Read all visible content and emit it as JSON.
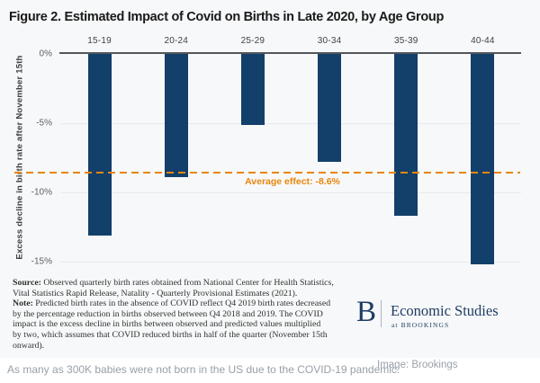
{
  "figure": {
    "title": "Figure 2. Estimated Impact of Covid on Births in Late 2020, by Age Group"
  },
  "chart_data": {
    "type": "bar",
    "title": "Figure 2. Estimated Impact of Covid on Births in Late 2020, by Age Group",
    "categories": [
      "15-19",
      "20-24",
      "25-29",
      "30-34",
      "35-39",
      "40-44"
    ],
    "values": [
      -13.1,
      -8.9,
      -5.1,
      -7.8,
      -11.7,
      -15.2
    ],
    "xlabel": "",
    "ylabel": "Excess decline in birth rate after November 15th",
    "ylim": [
      -16.5,
      0
    ],
    "yticks": [
      {
        "label": "0%",
        "value": 0
      },
      {
        "label": "-5%",
        "value": -5
      },
      {
        "label": "-10%",
        "value": -10
      },
      {
        "label": "-15%",
        "value": -15
      }
    ],
    "grid": true,
    "legend_position": "none",
    "bar_color": "#133f6b",
    "average_line": {
      "value": -8.6,
      "label": "Average effect: -8.6%",
      "color": "#e8860d",
      "style": "dashed"
    }
  },
  "notes": {
    "source_label": "Source:",
    "source_text": " Observed quarterly birth rates obtained from National Center for Health Statistics,\nVital Statistics Rapid Release, Natality - Quarterly Provisional Estimates (2021).\n",
    "note_label": "Note:",
    "note_text": " Predicted birth rates in the absence of COVID reflect Q4 2019 birth rates decreased\nby the percentage reduction in births observed between Q4 2018 and 2019. The COVID\nimpact is the excess decline in births between observed and predicted values multiplied\nby two, which assumes that COVID reduced births in half of the quarter (November 15th\nonward)."
  },
  "logo": {
    "initial": "B",
    "name": "Economic Studies",
    "subtitle": "at BROOKINGS",
    "color": "#1d3d63"
  },
  "footer": {
    "caption": "As many as 300K babies were not born in the US due to the COVID-19 pandemic.",
    "credit": "Image: Brookings"
  }
}
